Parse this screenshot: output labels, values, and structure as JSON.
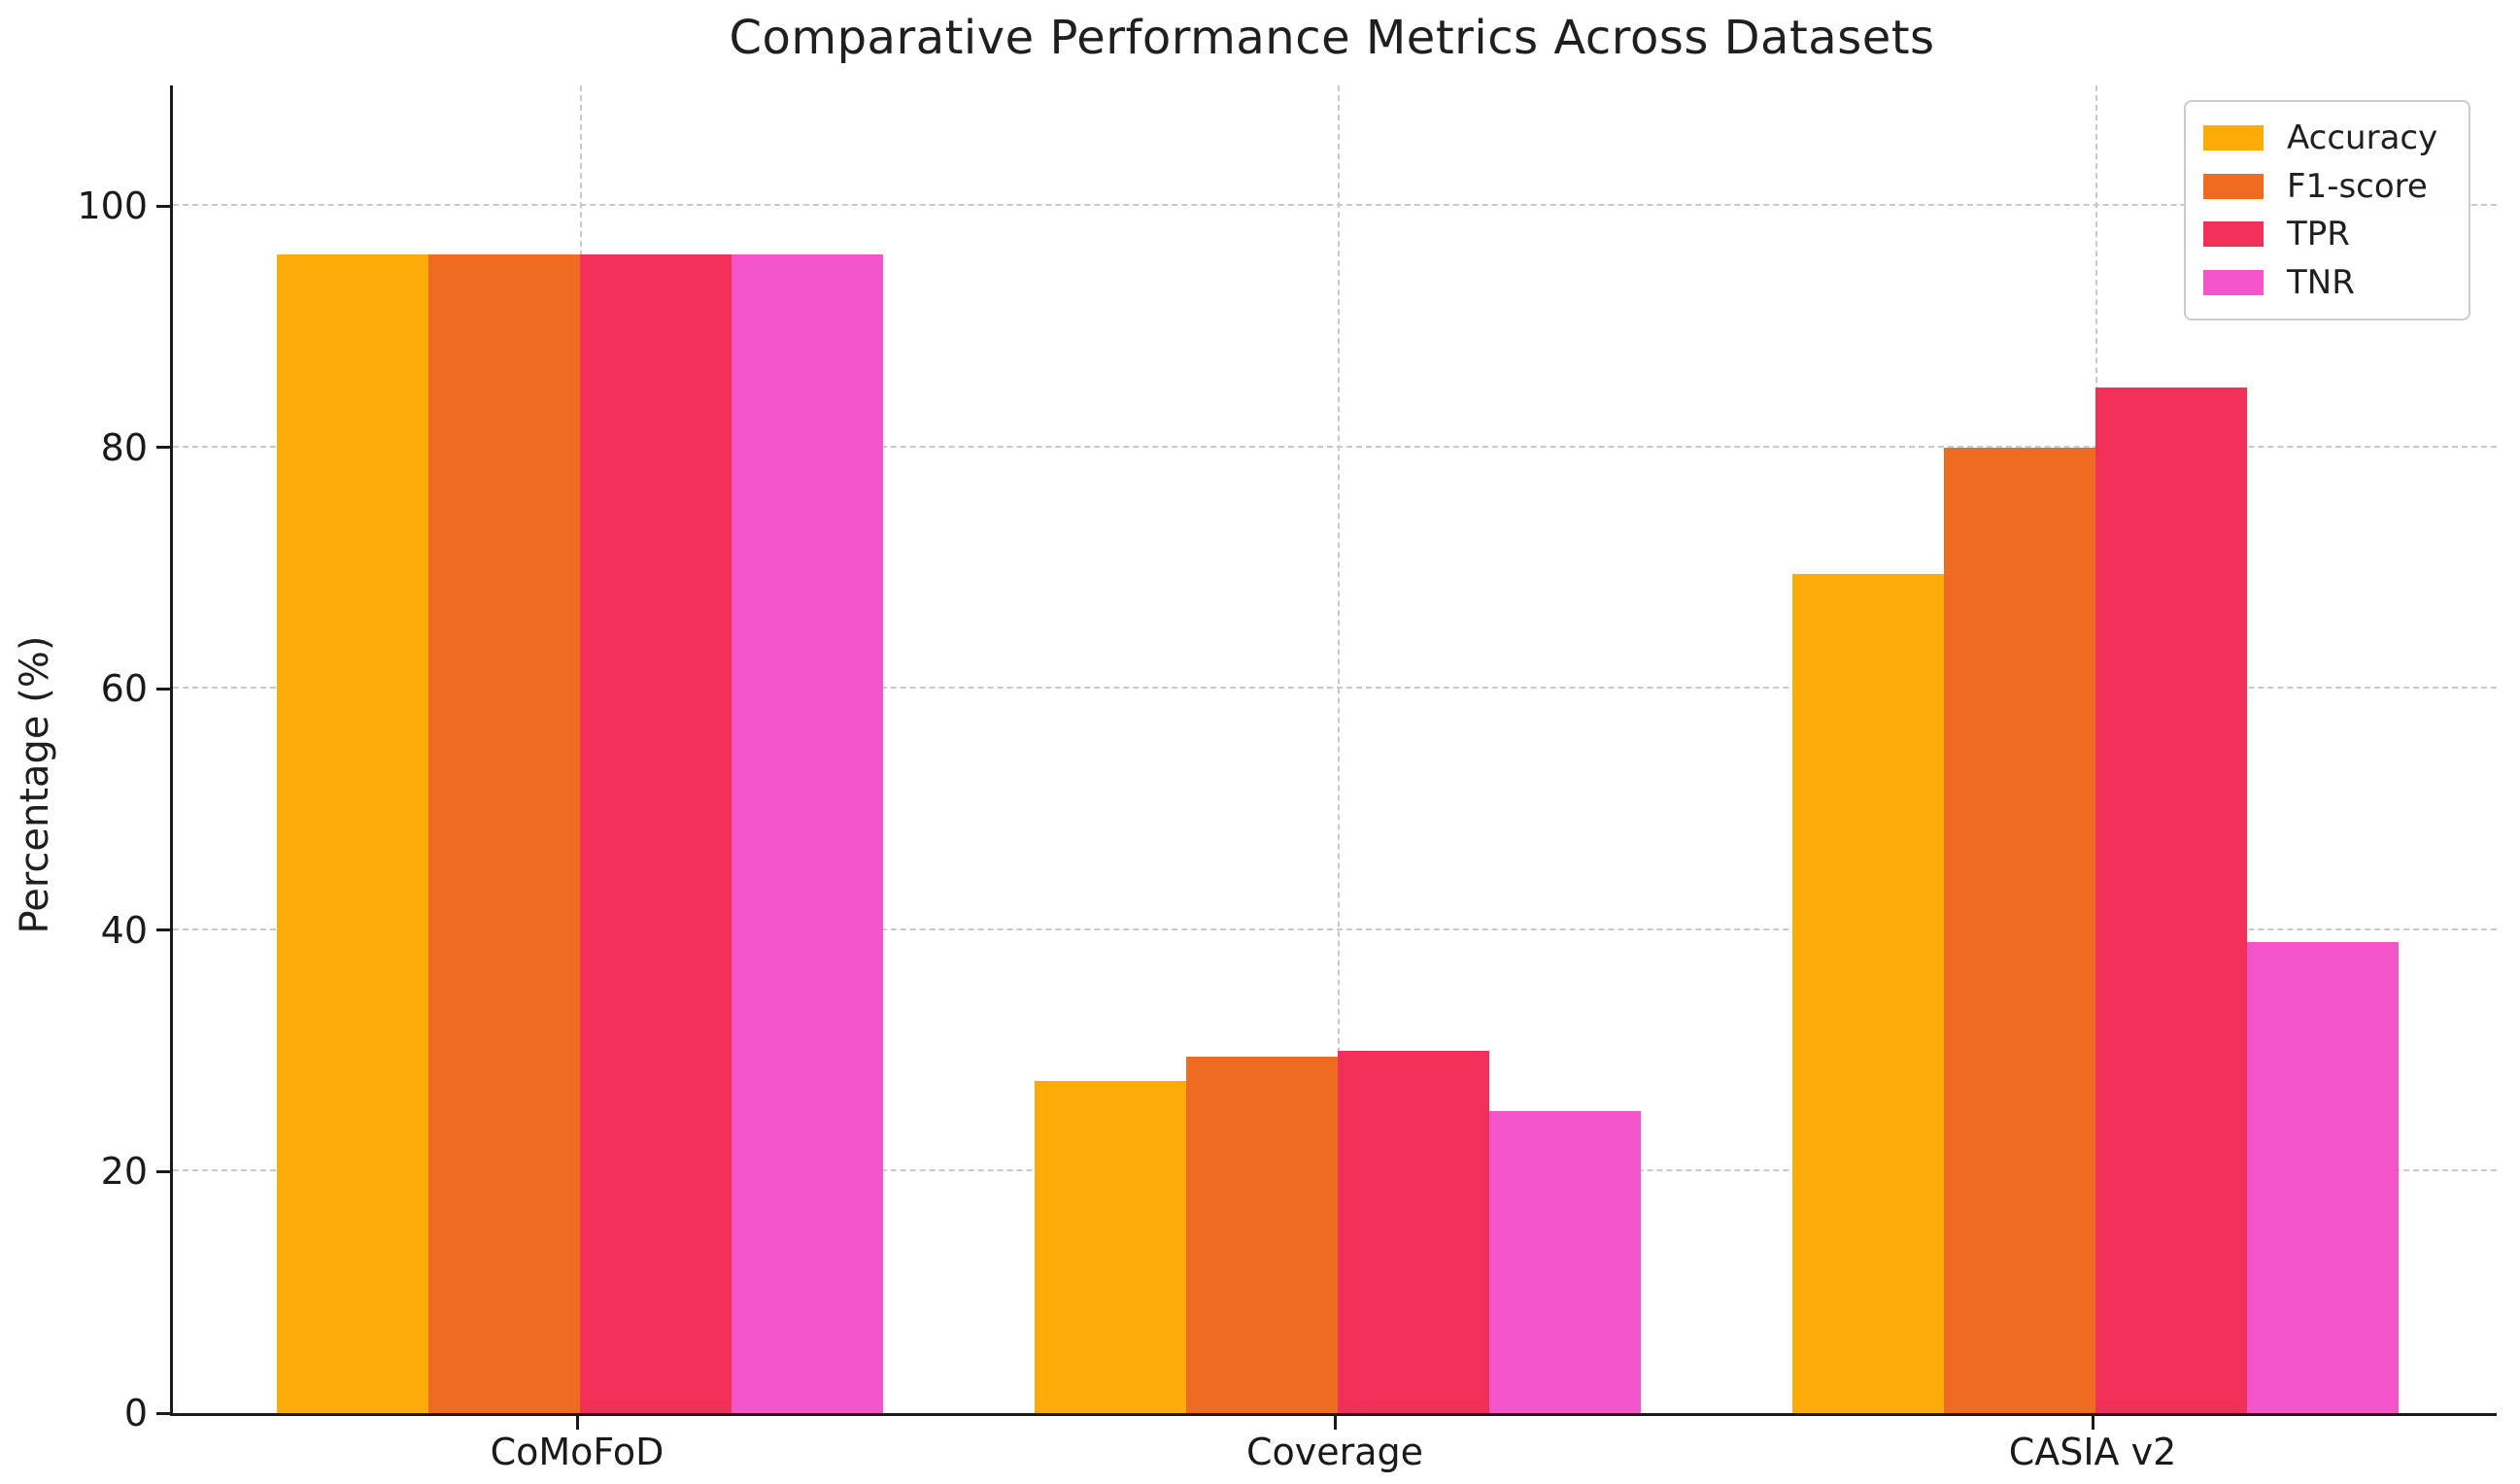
{
  "chart_data": {
    "type": "bar",
    "title": "Comparative Performance Metrics Across Datasets",
    "xlabel": "",
    "ylabel": "Percentage (%)",
    "categories": [
      "CoMoFoD",
      "Coverage",
      "CASIA v2"
    ],
    "series": [
      {
        "name": "Accuracy",
        "color": "#FDAB09",
        "values": [
          96,
          27.5,
          69.5
        ]
      },
      {
        "name": "F1-score",
        "color": "#EE6B22",
        "values": [
          96,
          29.5,
          80
        ]
      },
      {
        "name": "TPR",
        "color": "#F13057",
        "values": [
          96,
          30,
          85
        ]
      },
      {
        "name": "TNR",
        "color": "#F355C8",
        "values": [
          96,
          25,
          39
        ]
      }
    ],
    "ylim": [
      0,
      110
    ],
    "yticks": [
      0,
      20,
      40,
      60,
      80,
      100
    ],
    "grid": true,
    "grid_style": "dashed",
    "legend_position": "upper right"
  }
}
